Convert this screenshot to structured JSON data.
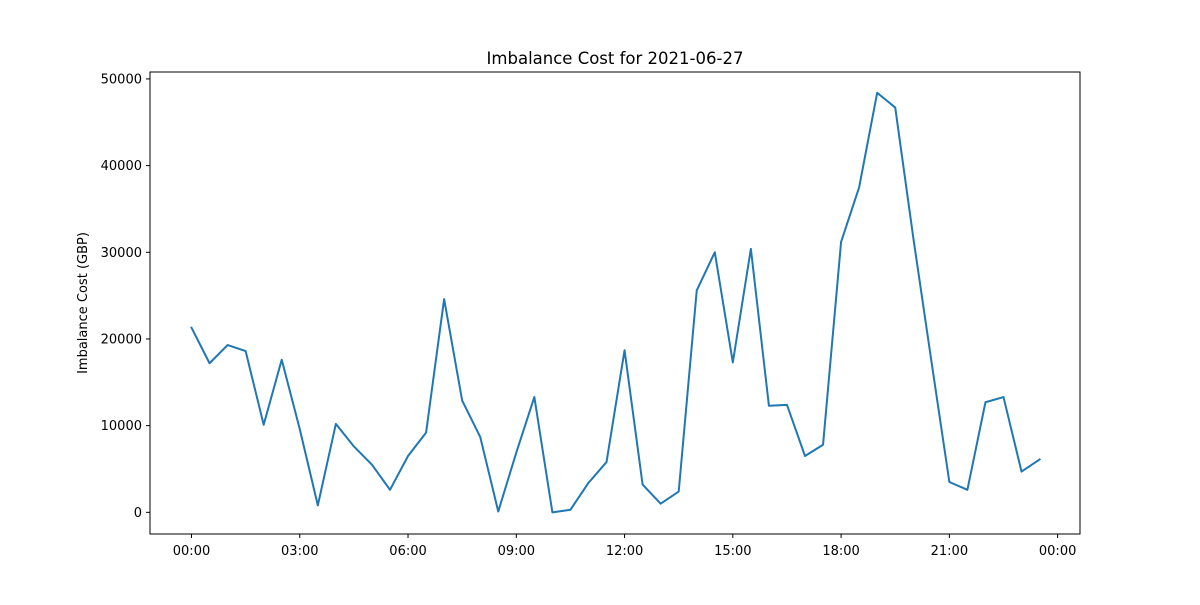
{
  "chart_data": {
    "type": "line",
    "title": "Imbalance Cost for 2021-06-27",
    "xlabel": "",
    "ylabel": "Imbalance Cost (GBP)",
    "x_tick_labels": [
      "00:00",
      "03:00",
      "06:00",
      "09:00",
      "12:00",
      "15:00",
      "18:00",
      "21:00",
      "00:00"
    ],
    "x_tick_hours": [
      0,
      3,
      6,
      9,
      12,
      15,
      18,
      21,
      24
    ],
    "y_ticks": [
      0,
      10000,
      20000,
      30000,
      40000,
      50000
    ],
    "y_tick_labels": [
      "0",
      "10000",
      "20000",
      "30000",
      "40000",
      "50000"
    ],
    "xlim_hours": [
      -1.15,
      24.62
    ],
    "ylim": [
      -2500,
      50800
    ],
    "grid": false,
    "series": [
      {
        "color": "#1f77b4",
        "x_hours": [
          0,
          0.5,
          1,
          1.5,
          2,
          2.5,
          3,
          3.5,
          4,
          4.5,
          5,
          5.5,
          6,
          6.5,
          7,
          7.5,
          8,
          8.5,
          9,
          9.5,
          10,
          10.5,
          11,
          11.5,
          12,
          12.5,
          13,
          13.5,
          14,
          14.5,
          15,
          15.5,
          16,
          16.5,
          17,
          17.5,
          18,
          18.5,
          19,
          19.5,
          20,
          20.5,
          21,
          21.5,
          22,
          22.5,
          23,
          23.5
        ],
        "values": [
          21300,
          17200,
          19300,
          18600,
          10100,
          17600,
          9600,
          800,
          10200,
          7600,
          5500,
          2600,
          6500,
          9200,
          24600,
          12900,
          8700,
          100,
          6900,
          13300,
          0,
          300,
          3400,
          5800,
          18700,
          3200,
          1000,
          2400,
          25600,
          30000,
          17300,
          30400,
          12300,
          12400,
          6500,
          7800,
          31200,
          37500,
          48400,
          46700,
          31700,
          17500,
          3500,
          2600,
          12700,
          13300,
          4700,
          6100
        ]
      }
    ]
  }
}
